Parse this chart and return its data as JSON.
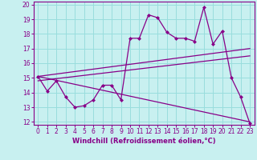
{
  "xlabel": "Windchill (Refroidissement éolien,°C)",
  "bg_color": "#c8f0f0",
  "line_color": "#880088",
  "grid_color": "#99dddd",
  "xlim": [
    -0.5,
    23.5
  ],
  "ylim": [
    11.8,
    20.2
  ],
  "yticks": [
    12,
    13,
    14,
    15,
    16,
    17,
    18,
    19,
    20
  ],
  "xticks": [
    0,
    1,
    2,
    3,
    4,
    5,
    6,
    7,
    8,
    9,
    10,
    11,
    12,
    13,
    14,
    15,
    16,
    17,
    18,
    19,
    20,
    21,
    22,
    23
  ],
  "line1_x": [
    0,
    1,
    2,
    3,
    4,
    5,
    6,
    7,
    8,
    9,
    10,
    11,
    12,
    13,
    14,
    15,
    16,
    17,
    18,
    19,
    20,
    21,
    22,
    23
  ],
  "line1_y": [
    15.1,
    14.1,
    14.8,
    13.7,
    13.0,
    13.1,
    13.5,
    14.5,
    14.5,
    13.5,
    17.7,
    17.7,
    19.3,
    19.1,
    18.1,
    17.7,
    17.7,
    17.5,
    19.8,
    17.3,
    18.2,
    15.0,
    13.7,
    11.9
  ],
  "line2_x": [
    0,
    23
  ],
  "line2_y": [
    15.1,
    17.0
  ],
  "line3_x": [
    0,
    23
  ],
  "line3_y": [
    15.1,
    12.0
  ],
  "line4_x": [
    0,
    23
  ],
  "line4_y": [
    14.8,
    16.5
  ]
}
